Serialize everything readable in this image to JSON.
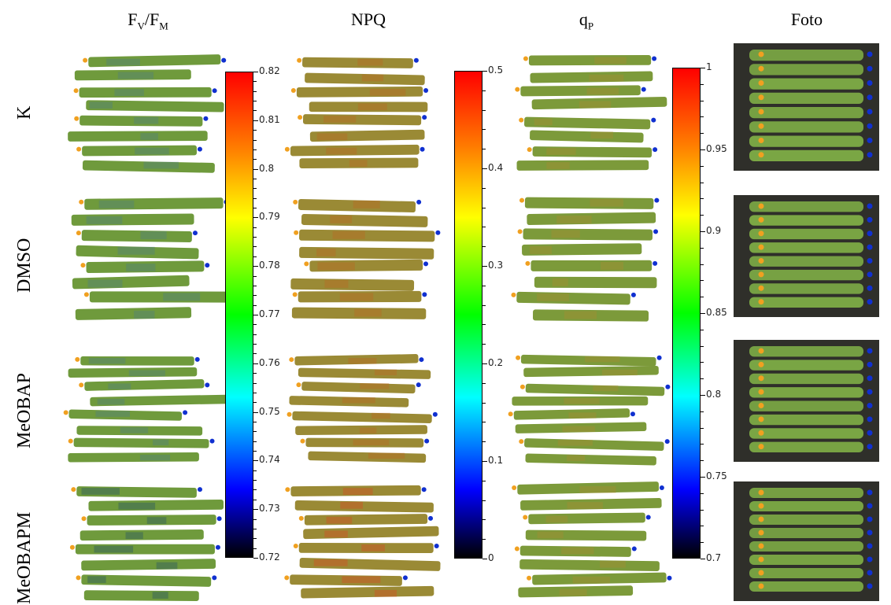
{
  "columns": {
    "fvfm": {
      "main": "F",
      "sub1": "V",
      "slash": "/F",
      "sub2": "M"
    },
    "npq": "NPQ",
    "qp": {
      "main": "q",
      "sub": "P"
    },
    "foto": "Foto"
  },
  "rows": [
    "K",
    "DMSO",
    "MeOBAP",
    "MeOBAPM"
  ],
  "colorbars": {
    "fvfm": {
      "min": 0.72,
      "max": 0.82,
      "labels": [
        "0.82",
        "0.81",
        "0.8",
        "0.79",
        "0.78",
        "0.77",
        "0.76",
        "0.75",
        "0.74",
        "0.73",
        "0.72"
      ]
    },
    "npq": {
      "min": 0,
      "max": 0.5,
      "labels": [
        "0.5",
        "0.4",
        "0.3",
        "0.2",
        "0.1",
        "0"
      ]
    },
    "qp": {
      "min": 0.7,
      "max": 1,
      "labels": [
        "1",
        "0.95",
        "0.9",
        "0.85",
        "0.8",
        "0.75",
        "0.7"
      ]
    }
  },
  "colors": {
    "leaf_fvfm": "#6f9a3c",
    "leaf_npq": "#9a8a35",
    "leaf_qp": "#7c9a3a",
    "photo_bg": "#2f2f2a",
    "photo_leaf": "#7fae46",
    "marker_orange": "#f0a020",
    "marker_blue": "#1030d0"
  }
}
